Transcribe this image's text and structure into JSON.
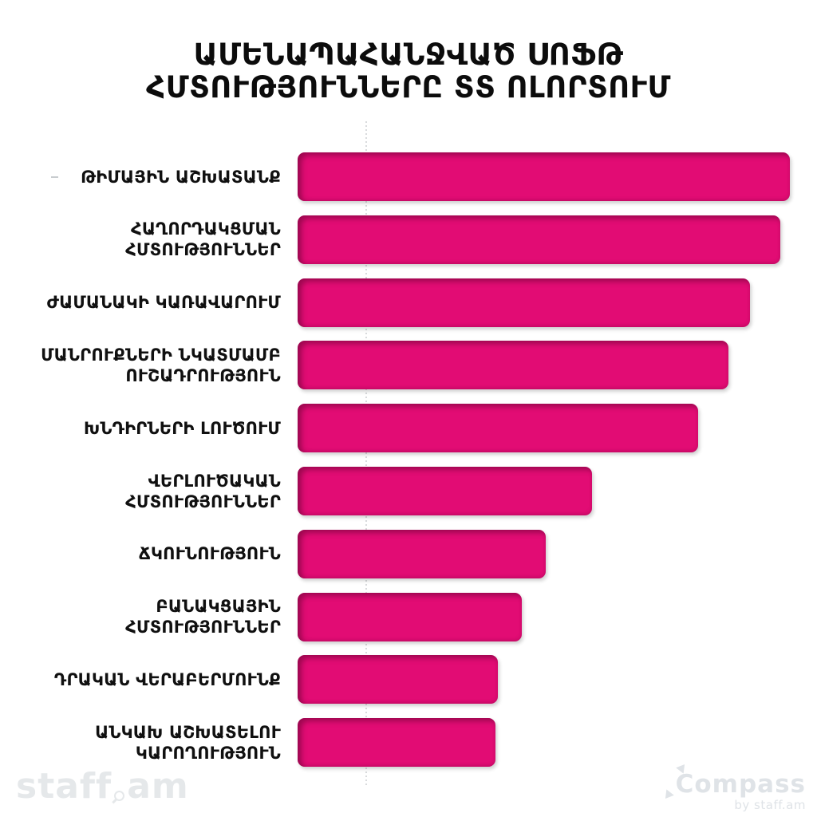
{
  "title": {
    "line1": "ԱՄԵՆԱՊԱՀԱՆՋՎԱԾ ՍՈՖԹ",
    "line2": "ՀՄՏՈՒԹՅՈՒՆՆԵՐԸ ՏՏ ՈԼՈՐՏՈՒՄ",
    "full": "ԱՄԵՆԱՊԱՀԱՆՋՎԱԾ ՍՈՖԹ ՀՄՏՈՒԹՅՈՒՆՆԵՐԸ ՏՏ ՈԼՈՐՏՈՒՄ"
  },
  "chart_data": {
    "type": "bar",
    "orientation": "horizontal",
    "title": "ԱՄԵՆԱՊԱՀԱՆՋՎԱԾ ՍՈՖԹ ՀՄՏՈՒԹՅՈՒՆՆԵՐԸ ՏՏ ՈԼՈՐՏՈՒՄ",
    "categories": [
      "ԹԻՄԱՅԻՆ ԱՇԽԱՏԱՆՔ",
      "ՀԱՂՈՐԴԱԿՑՄԱՆ ՀՄՏՈՒԹՅՈՒՆՆԵՐ",
      "ԺԱՄԱՆԱԿԻ ԿԱՌԱՎԱՐՈՒՄ",
      "ՄԱՆՐՈՒՔՆԵՐԻ ՆԿԱՏՄԱՄԲ ՈՒՇԱԴՐՈՒԹՅՈՒՆ",
      "ԽՆԴԻՐՆԵՐԻ ԼՈՒԾՈՒՄ",
      "ՎԵՐԼՈՒԾԱԿԱՆ ՀՄՏՈՒԹՅՈՒՆՆԵՐ",
      "ՃԿՈՒՆՈՒԹՅՈՒՆ",
      "ԲԱՆԱԿՑԱՅԻՆ ՀՄՏՈՒԹՅՈՒՆՆԵՐ",
      "ԴՐԱԿԱՆ ՎԵՐԱԲԵՐՄՈՒՆՔ",
      "ԱՆԿԱԽ ԱՇԽԱՏԵԼՈՒ ԿԱՐՈՂՈՒԹՅՈՒՆ"
    ],
    "display_lines": [
      [
        "ԹԻՄԱՅԻՆ ԱՇԽԱՏԱՆՔ"
      ],
      [
        "ՀԱՂՈՐԴԱԿՑՄԱՆ",
        "ՀՄՏՈՒԹՅՈՒՆՆԵՐ"
      ],
      [
        "ԺԱՄԱՆԱԿԻ ԿԱՌԱՎԱՐՈՒՄ"
      ],
      [
        "ՄԱՆՐՈՒՔՆԵՐԻ ՆԿԱՏՄԱՄԲ",
        "ՈՒՇԱԴՐՈՒԹՅՈՒՆ"
      ],
      [
        "ԽՆԴԻՐՆԵՐԻ ԼՈՒԾՈՒՄ"
      ],
      [
        "ՎԵՐԼՈՒԾԱԿԱՆ",
        "ՀՄՏՈՒԹՅՈՒՆՆԵՐ"
      ],
      [
        "ՃԿՈՒՆՈՒԹՅՈՒՆ"
      ],
      [
        "ԲԱՆԱԿՑԱՅԻՆ",
        "ՀՄՏՈՒԹՅՈՒՆՆԵՐ"
      ],
      [
        "ԴՐԱԿԱՆ ՎԵՐԱԲԵՐՄՈՒՆՔ"
      ],
      [
        "ԱՆԿԱԽ ԱՇԽԱՏԵԼՈՒ",
        "ԿԱՐՈՂՈՒԹՅՈՒՆ"
      ]
    ],
    "values_pct_of_max": [
      100,
      98.1,
      91.9,
      87.5,
      81.4,
      59.8,
      50.4,
      45.5,
      40.7,
      40.2
    ],
    "value_labels_visible": false,
    "axes_visible": false,
    "gridlines": "single vertical dotted line",
    "legend_position": "none",
    "bar_color": "#E20C74"
  },
  "footer": {
    "left_logo_text": "staff.am",
    "left_logo_pre": "staff",
    "left_logo_post": "am",
    "right_logo_text": "Compass",
    "right_logo_sub": "by staff.am"
  },
  "colors": {
    "background": "#FFFFFF",
    "bar": "#E20C74",
    "bar_inner_shadow": "#60042F",
    "title_text": "#0C0C0C",
    "label_text": "#101010",
    "gridline": "#D9DBDD",
    "logo_gray": "#E2E6E9"
  }
}
